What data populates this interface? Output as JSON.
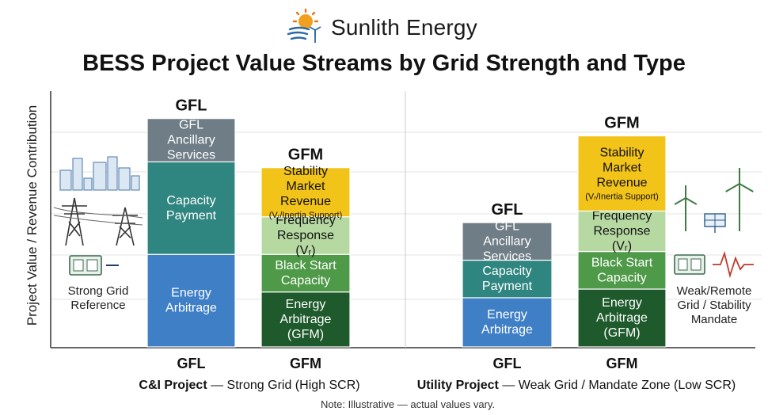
{
  "brand": {
    "name": "Sunlith Energy",
    "logo_icon": "sun-wind-logo"
  },
  "title": "BESS Project Value Streams by Grid Strength and Type",
  "note": "Note: Illustrative — actual values vary.",
  "colors": {
    "gfl_ancillary": "#6f7d86",
    "capacity": "#2f8580",
    "energy_arbitrage": "#3f7fc6",
    "stability_market": "#f2c318",
    "frequency_response": "#b6d9a2",
    "black_start": "#4f9a48",
    "energy_arbitrage_gfm": "#1e5a2b"
  },
  "chart_data": {
    "type": "bar",
    "stacked": true,
    "ylabel": "Project Value / Revenue Contribution",
    "grid": true,
    "groups": [
      {
        "label_bold": "C&I Project",
        "label_rest": " — Strong Grid (High SCR)",
        "side_label": "Strong Grid Reference",
        "side_icons": [
          "city-buildings-icon",
          "transmission-tower-icon",
          "battery-inverter-icon"
        ],
        "bars": [
          {
            "top_label": "GFL",
            "x_label": "GFL",
            "segments": [
              {
                "label": "Energy Arbitrage",
                "value": 3.2,
                "color": "#3f7fc6"
              },
              {
                "label": "Capacity Payment",
                "value": 3.2,
                "color": "#2f8580"
              },
              {
                "label": "GFL Ancillary Services",
                "value": 1.5,
                "color": "#6f7d86"
              }
            ]
          },
          {
            "top_label": "GFM",
            "x_label": "GFM",
            "segments": [
              {
                "label": "Energy Arbitrage (GFM)",
                "value": 1.9,
                "color": "#1e5a2b"
              },
              {
                "label": "Black Start Capacity",
                "value": 1.3,
                "color": "#4f9a48"
              },
              {
                "label": "Frequency Response (Vᵣ)",
                "value": 1.3,
                "color": "#b6d9a2"
              },
              {
                "label": "Stability Market Revenue",
                "sublabel": "(Vᵣ/Inertia Support)",
                "value": 1.7,
                "color": "#f2c318"
              }
            ]
          }
        ]
      },
      {
        "label_bold": "Utility Project",
        "label_rest": " — Weak Grid / Mandate Zone (Low SCR)",
        "side_label": "Weak/Remote Grid / Stability Mandate",
        "side_icons": [
          "wind-turbine-icon",
          "solar-panel-icon",
          "battery-inverter-icon",
          "waveform-icon"
        ],
        "bars": [
          {
            "top_label": "GFL",
            "x_label": "GFL",
            "segments": [
              {
                "label": "Energy Arbitrage",
                "value": 1.7,
                "color": "#3f7fc6"
              },
              {
                "label": "Capacity Payment",
                "value": 1.3,
                "color": "#2f8580"
              },
              {
                "label": "GFL Ancillary Services",
                "value": 1.3,
                "color": "#6f7d86"
              }
            ]
          },
          {
            "top_label": "GFM",
            "x_label": "GFM",
            "segments": [
              {
                "label": "Energy Arbitrage (GFM)",
                "value": 2.0,
                "color": "#1e5a2b"
              },
              {
                "label": "Black Start Capacity",
                "value": 1.3,
                "color": "#4f9a48"
              },
              {
                "label": "Frequency Response (Vᵣ)",
                "value": 1.4,
                "color": "#b6d9a2"
              },
              {
                "label": "Stability Market Revenue",
                "sublabel": "(Vᵣ/Inertia Support)",
                "value": 2.6,
                "color": "#f2c318"
              }
            ]
          }
        ]
      }
    ]
  }
}
